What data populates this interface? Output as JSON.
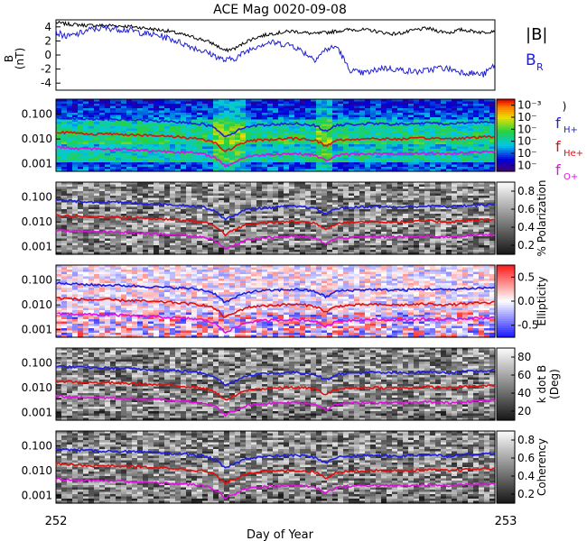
{
  "chart_data": {
    "title": "ACE Mag 0020-09-08",
    "xlabel": "Day of Year",
    "xlim": [
      252,
      253
    ],
    "x_ticks": [
      "252",
      "253"
    ],
    "panels": [
      {
        "type": "line",
        "ylabel": "B",
        "yunit": "(nT)",
        "ylim": [
          -5,
          5
        ],
        "y_ticks": [
          "4",
          "2",
          "0",
          "-2",
          "-4"
        ],
        "series": [
          {
            "name": "|B|",
            "color": "#000000",
            "values": [
              4.6,
              4.4,
              4.3,
              4.2,
              4.2,
              4.2,
              4.1,
              4.0,
              3.8,
              3.6,
              3.4,
              3.0,
              2.6,
              2.2,
              1.6,
              0.6,
              1.0,
              2.0,
              2.6,
              3.0,
              3.2,
              3.4,
              3.2,
              3.0,
              3.2,
              3.4,
              3.6,
              3.6,
              3.5,
              3.2,
              3.0,
              3.2,
              3.6,
              3.8,
              3.4,
              3.2,
              3.6,
              3.4,
              3.2,
              3.5
            ]
          },
          {
            "name": "B",
            "sub": "R",
            "color": "#1f1fd0",
            "values": [
              3.2,
              2.6,
              3.0,
              3.6,
              3.8,
              3.8,
              3.6,
              3.4,
              3.0,
              2.8,
              2.4,
              1.8,
              1.2,
              0.6,
              0.0,
              -0.8,
              -0.4,
              0.6,
              1.4,
              1.8,
              1.6,
              1.4,
              0.4,
              -0.6,
              0.8,
              1.2,
              -2.0,
              -2.6,
              -2.4,
              -1.8,
              -2.0,
              -2.2,
              -2.4,
              -2.2,
              -1.8,
              -2.0,
              -2.4,
              -2.6,
              -2.8,
              -1.4
            ]
          }
        ]
      },
      {
        "type": "heatmap",
        "colormap": "rainbow",
        "y_ticks": [
          "0.100",
          "0.010",
          "0.001"
        ],
        "colorbar_ticks": [
          "10⁻³",
          "10⁻",
          "10⁻",
          "10⁻",
          "10⁻",
          "10⁻"
        ],
        "colorbar_label": ")"
      },
      {
        "type": "heatmap",
        "colormap": "gray",
        "y_ticks": [
          "0.100",
          "0.010",
          "0.001"
        ],
        "colorbar_ticks": [
          "0.8",
          "0.6",
          "0.4",
          "0.2"
        ],
        "colorbar_label": "% Polarization"
      },
      {
        "type": "heatmap",
        "colormap": "blue-white-red",
        "y_ticks": [
          "0.100",
          "0.010",
          "0.001"
        ],
        "colorbar_ticks": [
          "0.5",
          "0.0",
          "-0.5"
        ],
        "colorbar_label": "Ellipticity"
      },
      {
        "type": "heatmap",
        "colormap": "gray",
        "y_ticks": [
          "0.100",
          "0.010",
          "0.001"
        ],
        "colorbar_ticks": [
          "80",
          "60",
          "40",
          "20"
        ],
        "colorbar_label": "k dot B",
        "colorbar_unit": "(Deg)"
      },
      {
        "type": "heatmap",
        "colormap": "gray",
        "y_ticks": [
          "0.100",
          "0.010",
          "0.001"
        ],
        "colorbar_ticks": [
          "0.8",
          "0.6",
          "0.4",
          "0.2"
        ],
        "colorbar_label": "Coherency"
      }
    ],
    "gyro_lines": [
      {
        "name": "f",
        "sub": "H+",
        "color": "#1f1fe0",
        "values": [
          0.075,
          0.07,
          0.068,
          0.065,
          0.063,
          0.062,
          0.06,
          0.058,
          0.055,
          0.052,
          0.05,
          0.048,
          0.045,
          0.04,
          0.03,
          0.012,
          0.02,
          0.032,
          0.036,
          0.038,
          0.04,
          0.042,
          0.04,
          0.035,
          0.02,
          0.036,
          0.038,
          0.04,
          0.042,
          0.04,
          0.04,
          0.04,
          0.042,
          0.044,
          0.042,
          0.04,
          0.045,
          0.046,
          0.048,
          0.05
        ]
      },
      {
        "name": "f",
        "sub": "He+",
        "color": "#e01010",
        "values": [
          0.019,
          0.018,
          0.017,
          0.016,
          0.016,
          0.016,
          0.015,
          0.015,
          0.014,
          0.013,
          0.013,
          0.012,
          0.011,
          0.01,
          0.0075,
          0.003,
          0.005,
          0.008,
          0.009,
          0.0095,
          0.01,
          0.0105,
          0.01,
          0.009,
          0.005,
          0.009,
          0.0095,
          0.01,
          0.0105,
          0.01,
          0.01,
          0.01,
          0.0105,
          0.011,
          0.0105,
          0.01,
          0.011,
          0.0115,
          0.012,
          0.0125
        ]
      },
      {
        "name": "f",
        "sub": "O+",
        "color": "#e010e0",
        "values": [
          0.0047,
          0.0044,
          0.0042,
          0.0041,
          0.004,
          0.0039,
          0.0038,
          0.0036,
          0.0034,
          0.0033,
          0.0031,
          0.003,
          0.0028,
          0.0025,
          0.0019,
          0.0008,
          0.0012,
          0.002,
          0.0022,
          0.0024,
          0.0025,
          0.0026,
          0.0025,
          0.0022,
          0.0013,
          0.0022,
          0.0024,
          0.0025,
          0.0026,
          0.0025,
          0.0025,
          0.0025,
          0.0026,
          0.0027,
          0.0026,
          0.0025,
          0.0028,
          0.0029,
          0.003,
          0.0031
        ]
      }
    ]
  }
}
